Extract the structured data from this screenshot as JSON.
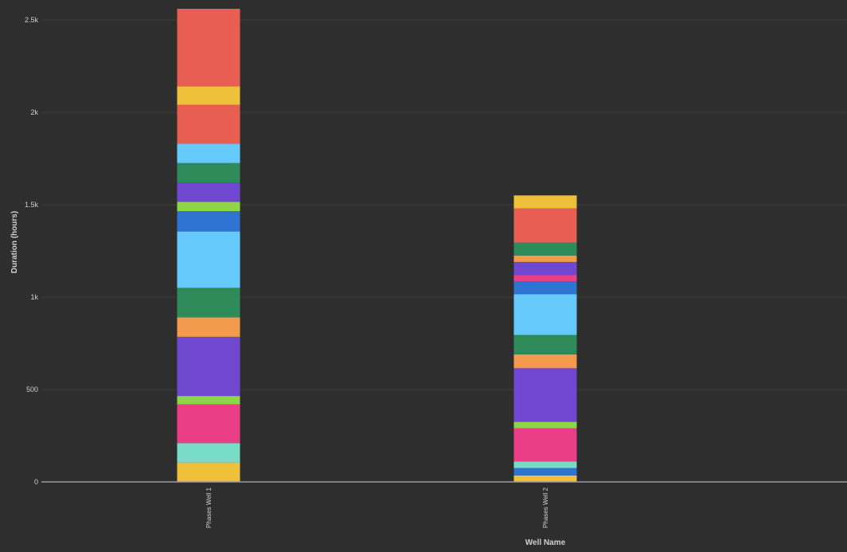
{
  "chart_data": {
    "type": "bar",
    "stacked": true,
    "title": "",
    "xlabel": "Well Name",
    "ylabel": "Duration (hours)",
    "ylim": [
      0,
      2560
    ],
    "yticks": [
      0,
      500,
      1000,
      1500,
      2000,
      2500
    ],
    "ytick_labels": [
      "0",
      "500",
      "1k",
      "1.5k",
      "2k",
      "2.5k"
    ],
    "grid": true,
    "legend": "none",
    "categories": [
      "Phases Well 1",
      "Phases Well 2"
    ],
    "stacks": [
      {
        "category": "Phases Well 1",
        "segments": [
          {
            "value": 105,
            "color": "#efc03a"
          },
          {
            "value": 105,
            "color": "#78dcc6"
          },
          {
            "value": 210,
            "color": "#ea3f87"
          },
          {
            "value": 45,
            "color": "#8ed645"
          },
          {
            "value": 320,
            "color": "#7048d0"
          },
          {
            "value": 105,
            "color": "#f39a4f"
          },
          {
            "value": 160,
            "color": "#2f8a5a"
          },
          {
            "value": 305,
            "color": "#66c9fb"
          },
          {
            "value": 110,
            "color": "#2e72d2"
          },
          {
            "value": 50,
            "color": "#8ed645"
          },
          {
            "value": 105,
            "color": "#7048d0"
          },
          {
            "value": 105,
            "color": "#2f8a5a"
          },
          {
            "value": 105,
            "color": "#66c9fb"
          },
          {
            "value": 210,
            "color": "#e85e53"
          },
          {
            "value": 100,
            "color": "#efc03a"
          },
          {
            "value": 420,
            "color": "#e85e53"
          }
        ]
      },
      {
        "category": "Phases Well 2",
        "segments": [
          {
            "value": 35,
            "color": "#efc03a"
          },
          {
            "value": 40,
            "color": "#2e72d2"
          },
          {
            "value": 35,
            "color": "#78dcc6"
          },
          {
            "value": 180,
            "color": "#ea3f87"
          },
          {
            "value": 35,
            "color": "#8ed645"
          },
          {
            "value": 290,
            "color": "#7048d0"
          },
          {
            "value": 75,
            "color": "#f39a4f"
          },
          {
            "value": 105,
            "color": "#2f8a5a"
          },
          {
            "value": 220,
            "color": "#66c9fb"
          },
          {
            "value": 70,
            "color": "#2e72d2"
          },
          {
            "value": 35,
            "color": "#ea3f87"
          },
          {
            "value": 70,
            "color": "#7048d0"
          },
          {
            "value": 35,
            "color": "#f39a4f"
          },
          {
            "value": 70,
            "color": "#2f8a5a"
          },
          {
            "value": 185,
            "color": "#e85e53"
          },
          {
            "value": 70,
            "color": "#efc03a"
          }
        ]
      }
    ]
  },
  "colors": {
    "background": "#2e2e2e",
    "grid": "#3d3d3d",
    "baseline": "#9a9a9a",
    "text": "#cfcfcf"
  }
}
